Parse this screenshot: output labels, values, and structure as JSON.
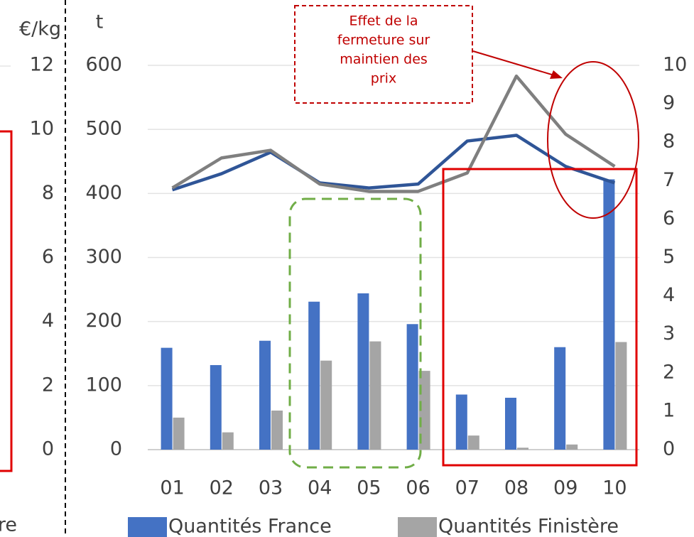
{
  "chart_data": {
    "type": "bar",
    "y_label": "t",
    "categories": [
      "01",
      "02",
      "03",
      "04",
      "05",
      "06",
      "07",
      "08",
      "09",
      "10"
    ],
    "series": [
      {
        "name": "Quantités France",
        "type": "bar",
        "color": "#4472c4",
        "values": [
          159,
          132,
          170,
          231,
          244,
          196,
          86,
          81,
          160,
          422
        ]
      },
      {
        "name": "Quantités Finistère",
        "type": "bar",
        "color": "#a5a5a5",
        "values": [
          50,
          27,
          61,
          139,
          169,
          123,
          22,
          3,
          8,
          168
        ]
      },
      {
        "type": "line",
        "axis": "y2",
        "color": "#2f5597",
        "values": [
          6.76,
          7.18,
          7.74,
          6.94,
          6.81,
          6.91,
          8.03,
          8.18,
          7.37,
          6.94
        ]
      },
      {
        "type": "line",
        "axis": "y2",
        "color": "#7f7f7f",
        "values": [
          6.81,
          7.59,
          7.79,
          6.91,
          6.72,
          6.72,
          7.2,
          9.72,
          8.21,
          7.37
        ]
      }
    ],
    "ylim": [
      0,
      600
    ],
    "yticks": [
      0,
      100,
      200,
      300,
      400,
      500,
      600
    ],
    "y2lim": [
      0,
      10
    ],
    "y2ticks": [
      0,
      1,
      2,
      3,
      4,
      5,
      6,
      7,
      8,
      9,
      10
    ],
    "grid": true,
    "annotation": [
      "Effet de la",
      "fermeture sur",
      "maintien des",
      "prix"
    ]
  },
  "left_panel": {
    "y_label": "€/kg",
    "yticks": [
      0,
      2,
      4,
      6,
      8,
      10,
      12
    ],
    "ylim": [
      0,
      12
    ],
    "legend_fragment": "re"
  }
}
